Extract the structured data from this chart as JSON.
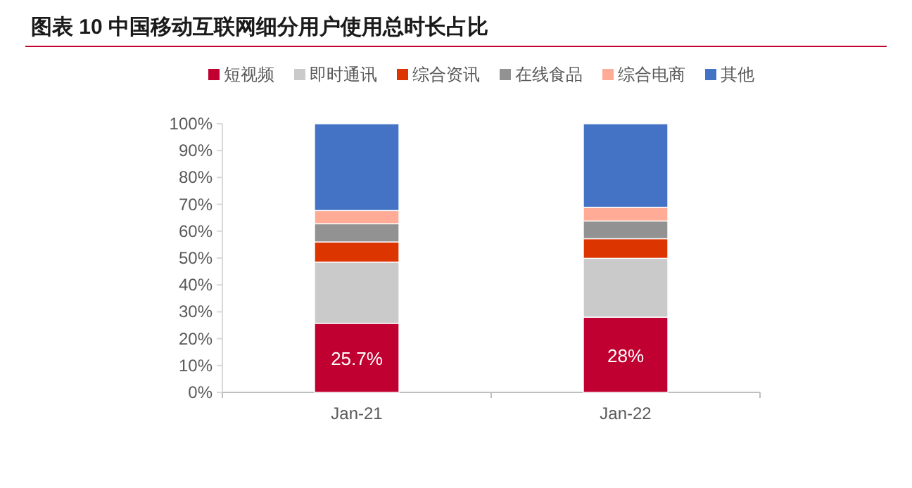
{
  "chart_data": {
    "type": "bar",
    "stacked": true,
    "title": "图表 10  中国移动互联网细分用户使用总时长占比",
    "categories": [
      "Jan-21",
      "Jan-22"
    ],
    "series": [
      {
        "name": "短视频",
        "color": "#c00030",
        "values": [
          25.7,
          28
        ],
        "value_labels": [
          "25.7%",
          "28%"
        ]
      },
      {
        "name": "即时通讯",
        "color": "#cacaca",
        "values": [
          22.8,
          21.9
        ]
      },
      {
        "name": "综合资讯",
        "color": "#dc3500",
        "values": [
          7.5,
          7.3
        ]
      },
      {
        "name": "在线食品",
        "color": "#929292",
        "values": [
          6.8,
          6.6
        ]
      },
      {
        "name": "综合电商",
        "color": "#ffab96",
        "values": [
          4.9,
          5.1
        ]
      },
      {
        "name": "其他",
        "color": "#4472c4",
        "values": [
          32.3,
          31.1
        ]
      }
    ],
    "ylim": [
      0,
      100
    ],
    "yticks": [
      {
        "value": 0,
        "label": "0%"
      },
      {
        "value": 10,
        "label": "10%"
      },
      {
        "value": 20,
        "label": "20%"
      },
      {
        "value": 30,
        "label": "30%"
      },
      {
        "value": 40,
        "label": "40%"
      },
      {
        "value": 50,
        "label": "50%"
      },
      {
        "value": 60,
        "label": "60%"
      },
      {
        "value": 70,
        "label": "70%"
      },
      {
        "value": 80,
        "label": "80%"
      },
      {
        "value": 90,
        "label": "90%"
      },
      {
        "value": 100,
        "label": "100%"
      }
    ],
    "grid": false,
    "legend": "top"
  }
}
